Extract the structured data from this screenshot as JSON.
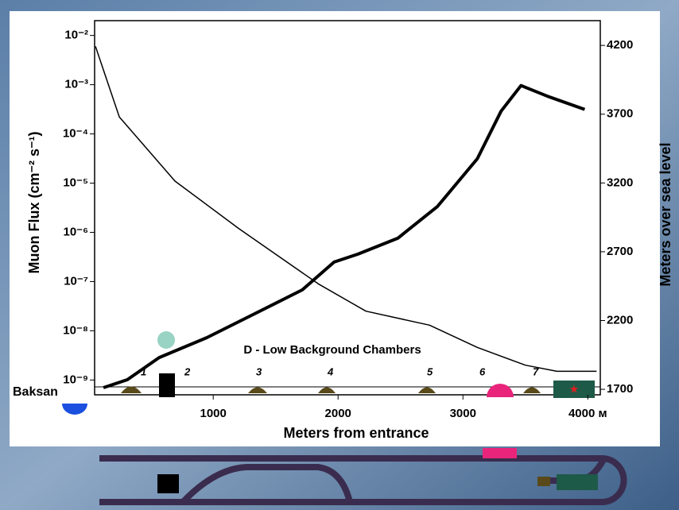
{
  "chart_data": {
    "type": "line",
    "annotation": "D - Low Background Chambers",
    "site_label": "Baksan",
    "chamber_labels": [
      "1",
      "2",
      "3",
      "4",
      "5",
      "6",
      "7"
    ],
    "x_label": "Meters from entrance",
    "y_label": "Muon Flux (cm⁻² s⁻¹)",
    "y2_label": "Meters over sea level",
    "ylog": true,
    "xlim": [
      50,
      4100
    ],
    "xticks": [
      1000,
      2000,
      3000,
      {
        "value": 4000,
        "label": "4000 м"
      }
    ],
    "ylim": [
      5e-10,
      0.02
    ],
    "yticks": [
      {
        "value": 0.01,
        "label": "10⁻²"
      },
      {
        "value": 0.001,
        "label": "10⁻³"
      },
      {
        "value": 0.0001,
        "label": "10⁻⁴"
      },
      {
        "value": 1e-05,
        "label": "10⁻⁵"
      },
      {
        "value": 1e-06,
        "label": "10⁻⁶"
      },
      {
        "value": 1e-07,
        "label": "10⁻⁷"
      },
      {
        "value": 1e-08,
        "label": "10⁻⁸"
      },
      {
        "value": 1e-09,
        "label": "10⁻⁹"
      }
    ],
    "y2lim": [
      1660,
      4380
    ],
    "y2ticks": [
      1700,
      2200,
      2700,
      3200,
      3700,
      4200
    ],
    "series": [
      {
        "axis": "y",
        "color": "#000000",
        "width": 1.5,
        "x": [
          57,
          248,
          694,
          1204,
          1841,
          2223,
          2732,
          3115,
          3500,
          3752,
          4070
        ],
        "values": [
          0.006,
          0.00022,
          1.1e-05,
          1.2e-06,
          9e-08,
          2.5e-08,
          1.3e-08,
          4.6e-09,
          2e-09,
          1.5e-09,
          1.5e-09
        ]
      },
      {
        "axis": "y2",
        "color": "#000000",
        "width": 4,
        "x": [
          121,
          312,
          567,
          949,
          1395,
          1713,
          1968,
          2159,
          2478,
          2796,
          3115,
          3306,
          3465,
          3688,
          3975
        ],
        "values": [
          1712,
          1770,
          1931,
          2076,
          2278,
          2423,
          2625,
          2683,
          2798,
          3029,
          3376,
          3723,
          3908,
          3827,
          3735
        ]
      }
    ]
  }
}
